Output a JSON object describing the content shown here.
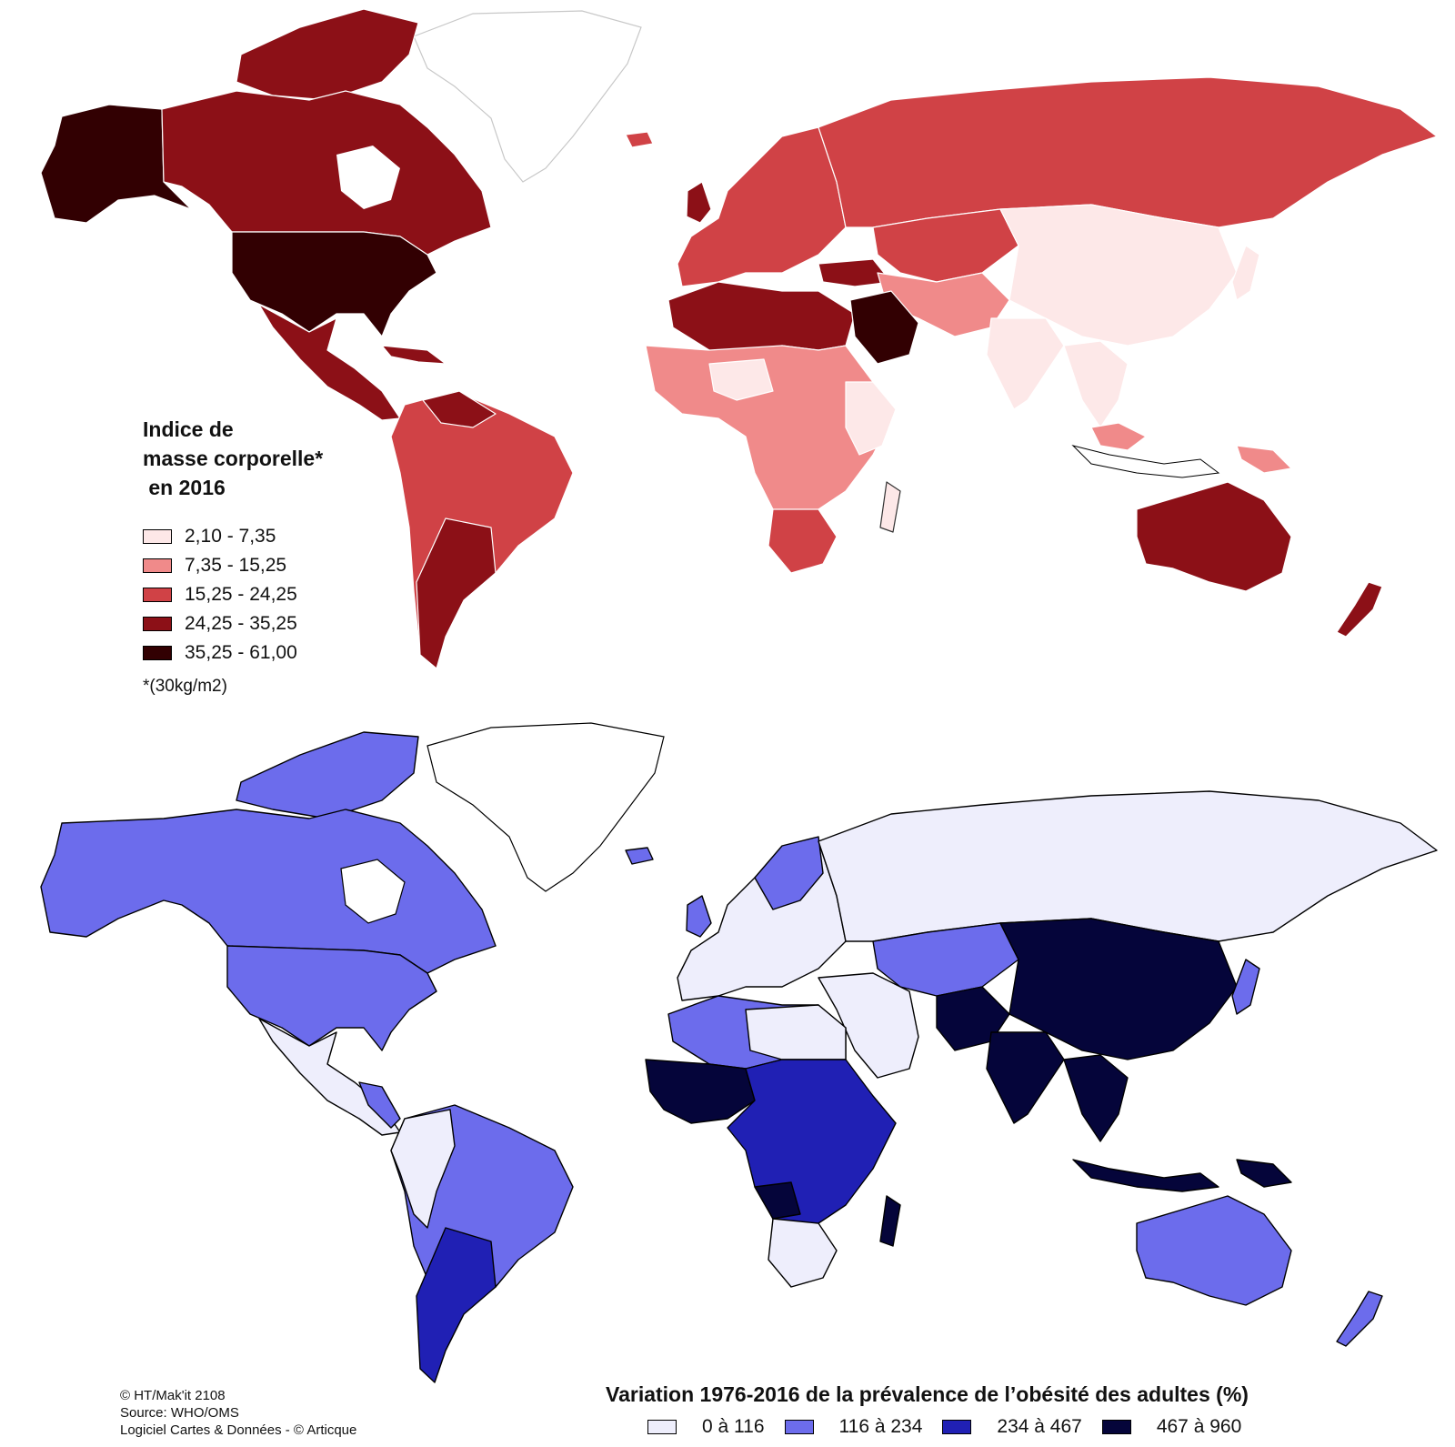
{
  "top_map": {
    "legend_title": [
      "Indice de",
      "masse corporelle*",
      " en 2016"
    ],
    "classes": [
      {
        "label": "2,10 - 7,35",
        "color": "#fde8e8"
      },
      {
        "label": "7,35 - 15,25",
        "color": "#f08a8a"
      },
      {
        "label": "15,25 - 24,25",
        "color": "#d04246"
      },
      {
        "label": "24,25 - 35,25",
        "color": "#8c1017"
      },
      {
        "label": "35,25 - 61,00",
        "color": "#320002"
      }
    ],
    "note": "*(30kg/m2)"
  },
  "bottom_map": {
    "title": "Variation 1976-2016 de la prévalence de l’obésité des adultes (%)",
    "classes": [
      {
        "label": "0 à 116",
        "color": "#eeeefc"
      },
      {
        "label": "116 à 234",
        "color": "#6c6cec"
      },
      {
        "label": "234 à 467",
        "color": "#2020b4"
      },
      {
        "label": "467 à 960",
        "color": "#05053a"
      }
    ]
  },
  "credits": [
    "© HT/Mak'it 2108",
    "Source: WHO/OMS",
    "Logiciel Cartes & Données - © Articque"
  ]
}
